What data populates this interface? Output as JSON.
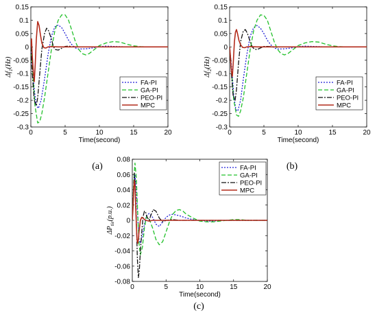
{
  "figure": {
    "captions": [
      "(a)",
      "(b)",
      "(c)"
    ]
  },
  "chart_data": [
    {
      "type": "line",
      "panel": "(a)",
      "xlabel": "Time(second)",
      "ylabel": "Δf1(Hz)",
      "xlim": [
        0,
        20
      ],
      "ylim": [
        -0.3,
        0.15
      ],
      "xticks": [
        0,
        5,
        10,
        15,
        20
      ],
      "yticks": [
        0.15,
        0.1,
        0.05,
        0,
        -0.05,
        -0.1,
        -0.15,
        -0.2,
        -0.25,
        -0.3
      ],
      "ytick_labels": [
        "0.15",
        "0.1",
        "0.05",
        "0",
        "-0.05",
        "-0.1",
        "-0.15",
        "-0.2",
        "-0.25",
        "-0.3"
      ],
      "grid": false,
      "legend_position": "bottom-right",
      "series": [
        {
          "name": "FA-PI",
          "color": "#1f1fd6",
          "dash": "2,2",
          "x": [
            0,
            0.2,
            0.5,
            0.8,
            1.1,
            1.5,
            2,
            2.5,
            3,
            3.5,
            4,
            4.5,
            5,
            5.5,
            6,
            6.5,
            7,
            8,
            9,
            10,
            11,
            12,
            13,
            14,
            15,
            16,
            17,
            18,
            20
          ],
          "y": [
            0,
            -0.06,
            -0.16,
            -0.22,
            -0.23,
            -0.2,
            -0.12,
            -0.03,
            0.04,
            0.075,
            0.082,
            0.072,
            0.05,
            0.025,
            0.008,
            -0.004,
            -0.008,
            -0.007,
            -0.004,
            0.001,
            0.003,
            0.002,
            0.001,
            0,
            0,
            0,
            0,
            0,
            0
          ]
        },
        {
          "name": "GA-PI",
          "color": "#22c02a",
          "dash": "6,3",
          "x": [
            0,
            0.3,
            0.6,
            1,
            1.3,
            1.6,
            2,
            2.5,
            3,
            3.5,
            4,
            4.5,
            5,
            5.5,
            6,
            6.5,
            7,
            7.5,
            8,
            8.5,
            9,
            10,
            11,
            12,
            13,
            14,
            15,
            16,
            17,
            18,
            20
          ],
          "y": [
            0,
            -0.1,
            -0.22,
            -0.285,
            -0.28,
            -0.25,
            -0.19,
            -0.1,
            -0.01,
            0.06,
            0.1,
            0.12,
            0.12,
            0.1,
            0.06,
            0.02,
            -0.01,
            -0.025,
            -0.03,
            -0.025,
            -0.015,
            0.005,
            0.015,
            0.02,
            0.018,
            0.01,
            0.004,
            0.001,
            0,
            0,
            0
          ]
        },
        {
          "name": "PEO-PI",
          "color": "#111111",
          "dash": "7,2,2,2",
          "x": [
            0,
            0.2,
            0.5,
            0.8,
            1,
            1.3,
            1.6,
            2,
            2.3,
            2.6,
            3,
            3.3,
            3.6,
            4,
            4.5,
            5,
            5.5,
            6,
            7,
            8,
            10,
            12,
            15,
            20
          ],
          "y": [
            0,
            -0.1,
            -0.2,
            -0.22,
            -0.19,
            -0.1,
            -0.01,
            0.05,
            0.07,
            0.06,
            0.03,
            0,
            -0.01,
            -0.012,
            -0.005,
            0.002,
            0.003,
            0.001,
            0,
            0,
            0,
            0,
            0,
            0
          ]
        },
        {
          "name": "MPC",
          "color": "#b22a1a",
          "dash": "",
          "x": [
            0,
            0.1,
            0.2,
            0.35,
            0.5,
            0.65,
            0.8,
            1,
            1.2,
            1.4,
            1.6,
            1.9,
            2.2,
            2.5,
            3,
            4,
            6,
            10,
            15,
            20
          ],
          "y": [
            0,
            0.03,
            -0.03,
            -0.09,
            -0.13,
            -0.06,
            0.03,
            0.095,
            0.08,
            0.045,
            0.015,
            -0.003,
            -0.004,
            0,
            0.001,
            0,
            0,
            0,
            0,
            0
          ]
        }
      ]
    },
    {
      "type": "line",
      "panel": "(b)",
      "xlabel": "Time(second)",
      "ylabel": "Δf2(Hz)",
      "xlim": [
        0,
        20
      ],
      "ylim": [
        -0.3,
        0.15
      ],
      "xticks": [
        0,
        5,
        10,
        15,
        20
      ],
      "yticks": [
        0.15,
        0.1,
        0.05,
        0,
        -0.05,
        -0.1,
        -0.15,
        -0.2,
        -0.25,
        -0.3
      ],
      "ytick_labels": [
        "0.15",
        "0.1",
        "0.05",
        "0",
        "-0.05",
        "-0.1",
        "-0.15",
        "-0.2",
        "-0.25",
        "-0.3"
      ],
      "grid": false,
      "legend_position": "bottom-right",
      "series": [
        {
          "name": "FA-PI",
          "color": "#1f1fd6",
          "dash": "2,2",
          "x": [
            0,
            0.3,
            0.6,
            0.9,
            1.2,
            1.6,
            2,
            2.5,
            3,
            3.5,
            4,
            4.5,
            5,
            5.5,
            6,
            6.5,
            7,
            8,
            9,
            10,
            11,
            12,
            13,
            14,
            15,
            16,
            17,
            18,
            20
          ],
          "y": [
            0,
            -0.08,
            -0.18,
            -0.235,
            -0.24,
            -0.2,
            -0.12,
            -0.03,
            0.04,
            0.072,
            0.08,
            0.07,
            0.05,
            0.025,
            0.008,
            -0.004,
            -0.008,
            -0.007,
            -0.004,
            0.001,
            0.003,
            0.002,
            0.001,
            0,
            0,
            0,
            0,
            0,
            0
          ]
        },
        {
          "name": "GA-PI",
          "color": "#22c02a",
          "dash": "6,3",
          "x": [
            0,
            0.3,
            0.6,
            1,
            1.3,
            1.6,
            2,
            2.5,
            3,
            3.5,
            4,
            4.5,
            5,
            5.5,
            6,
            6.5,
            7,
            7.5,
            8,
            8.5,
            9,
            10,
            11,
            12,
            13,
            14,
            15,
            16,
            17,
            18,
            20
          ],
          "y": [
            0,
            -0.1,
            -0.2,
            -0.255,
            -0.26,
            -0.24,
            -0.19,
            -0.1,
            -0.01,
            0.06,
            0.1,
            0.12,
            0.118,
            0.1,
            0.06,
            0.02,
            -0.01,
            -0.025,
            -0.03,
            -0.025,
            -0.015,
            0.005,
            0.015,
            0.02,
            0.018,
            0.01,
            0.004,
            0.001,
            0,
            0,
            0
          ]
        },
        {
          "name": "PEO-PI",
          "color": "#111111",
          "dash": "7,2,2,2",
          "x": [
            0,
            0.2,
            0.5,
            0.8,
            1,
            1.3,
            1.6,
            2,
            2.3,
            2.6,
            3,
            3.3,
            3.6,
            4,
            4.5,
            5,
            5.5,
            6,
            7,
            8,
            10,
            12,
            15,
            20
          ],
          "y": [
            0,
            -0.08,
            -0.18,
            -0.2,
            -0.16,
            -0.06,
            0.02,
            0.06,
            0.065,
            0.05,
            0.02,
            0,
            -0.008,
            -0.01,
            -0.004,
            0.002,
            0.002,
            0.001,
            0,
            0,
            0,
            0,
            0,
            0
          ]
        },
        {
          "name": "MPC",
          "color": "#b22a1a",
          "dash": "",
          "x": [
            0,
            0.1,
            0.25,
            0.4,
            0.55,
            0.7,
            0.85,
            1,
            1.15,
            1.35,
            1.6,
            1.9,
            2.2,
            2.5,
            3,
            4,
            6,
            10,
            15,
            20
          ],
          "y": [
            0,
            -0.03,
            -0.09,
            -0.11,
            -0.05,
            0.02,
            0.055,
            0.065,
            0.05,
            0.025,
            0.008,
            -0.002,
            -0.003,
            0,
            0.001,
            0,
            0,
            0,
            0,
            0
          ]
        }
      ]
    },
    {
      "type": "line",
      "panel": "(c)",
      "xlabel": "Time(second)",
      "ylabel": "ΔPtie(p.u.)",
      "xlim": [
        0,
        20
      ],
      "ylim": [
        -0.08,
        0.08
      ],
      "xticks": [
        0,
        5,
        10,
        15,
        20
      ],
      "yticks": [
        0.08,
        0.06,
        0.04,
        0.02,
        0,
        -0.02,
        -0.04,
        -0.06,
        -0.08
      ],
      "ytick_labels": [
        "0.08",
        "0.06",
        "0.04",
        "0.02",
        "0",
        "-0.02",
        "-0.04",
        "-0.06",
        "-0.08"
      ],
      "grid": false,
      "legend_position": "top-right",
      "series": [
        {
          "name": "FA-PI",
          "color": "#1f1fd6",
          "dash": "2,2",
          "x": [
            0,
            0.2,
            0.4,
            0.6,
            0.8,
            1,
            1.2,
            1.5,
            1.8,
            2.1,
            2.5,
            3,
            3.5,
            4,
            4.5,
            5,
            5.5,
            6,
            7,
            8,
            9,
            10,
            11,
            12,
            13,
            14,
            15,
            16,
            18,
            20
          ],
          "y": [
            0,
            0.04,
            0.06,
            0.04,
            0.005,
            -0.025,
            -0.03,
            -0.02,
            -0.005,
            0.006,
            0.009,
            0.004,
            -0.005,
            -0.008,
            -0.002,
            0.004,
            0.007,
            0.008,
            0.006,
            0.003,
            0.001,
            0,
            -0.001,
            -0.001,
            0,
            0,
            0,
            0,
            0,
            0
          ]
        },
        {
          "name": "GA-PI",
          "color": "#22c02a",
          "dash": "6,3",
          "x": [
            0,
            0.2,
            0.4,
            0.6,
            0.8,
            1,
            1.2,
            1.5,
            1.8,
            2.1,
            2.5,
            3,
            3.5,
            4,
            4.5,
            5,
            5.5,
            6,
            6.5,
            7,
            7.5,
            8,
            9,
            10,
            11,
            12,
            13,
            14,
            15,
            16,
            17,
            18,
            20
          ],
          "y": [
            0,
            0.05,
            0.075,
            0.055,
            0.01,
            -0.03,
            -0.045,
            -0.035,
            -0.01,
            0.005,
            0.002,
            -0.01,
            -0.025,
            -0.032,
            -0.028,
            -0.015,
            -0.002,
            0.008,
            0.013,
            0.014,
            0.012,
            0.008,
            0.003,
            -0.001,
            -0.002,
            -0.002,
            -0.001,
            0,
            0.001,
            0.001,
            0,
            0,
            0
          ]
        },
        {
          "name": "PEO-PI",
          "color": "#111111",
          "dash": "7,2,2,2",
          "x": [
            0,
            0.15,
            0.3,
            0.45,
            0.6,
            0.75,
            0.9,
            1.05,
            1.2,
            1.4,
            1.6,
            1.8,
            2,
            2.2,
            2.5,
            2.8,
            3.1,
            3.5,
            4,
            4.5,
            5,
            6,
            7,
            8,
            10,
            12,
            15,
            20
          ],
          "y": [
            0,
            0.035,
            0.062,
            0.045,
            0,
            -0.05,
            -0.075,
            -0.065,
            -0.04,
            -0.015,
            0.005,
            0.012,
            0.01,
            0.004,
            0,
            0.008,
            0.014,
            0.012,
            0.003,
            -0.002,
            0,
            0.001,
            0,
            0,
            0,
            0,
            0,
            0
          ]
        },
        {
          "name": "MPC",
          "color": "#b22a1a",
          "dash": "",
          "x": [
            0,
            0.1,
            0.2,
            0.3,
            0.4,
            0.5,
            0.6,
            0.7,
            0.8,
            0.9,
            1,
            1.2,
            1.4,
            1.7,
            2,
            2.5,
            3,
            4,
            6,
            10,
            15,
            20
          ],
          "y": [
            0,
            0.015,
            0.04,
            0.052,
            0.045,
            0.02,
            -0.005,
            -0.025,
            -0.03,
            -0.025,
            -0.015,
            0,
            0.004,
            0.002,
            0,
            -0.001,
            0,
            0,
            0,
            0,
            0,
            0
          ]
        }
      ]
    }
  ]
}
